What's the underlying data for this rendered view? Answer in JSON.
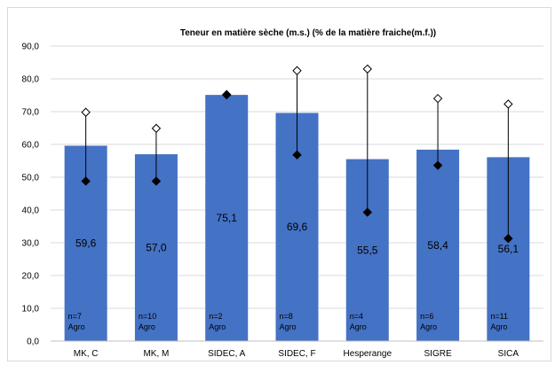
{
  "chart_data": {
    "type": "bar",
    "title": "Teneur en matière sèche (m.s.) (% de la matière fraiche(m.f.))",
    "categories": [
      "MK, C",
      "MK, M",
      "SIDEC, A",
      "SIDEC, F",
      "Hesperange",
      "SIGRE",
      "SICA"
    ],
    "values": [
      59.6,
      57.0,
      75.1,
      69.6,
      55.5,
      58.4,
      56.1
    ],
    "value_labels": [
      "59,6",
      "57,0",
      "75,1",
      "69,6",
      "55,5",
      "58,4",
      "56,1"
    ],
    "max": [
      69.8,
      64.9,
      75.2,
      82.5,
      83.0,
      74.0,
      72.3
    ],
    "min": [
      48.8,
      48.8,
      75.1,
      56.8,
      39.3,
      53.6,
      31.3
    ],
    "n_labels": [
      "n=7",
      "n=10",
      "n=2",
      "n=8",
      "n=4",
      "n=6",
      "n=11"
    ],
    "group_label": "Agro",
    "ylim": [
      0,
      90
    ],
    "ytick_labels": [
      "0,0",
      "10,0",
      "20,0",
      "30,0",
      "40,0",
      "50,0",
      "60,0",
      "70,0",
      "80,0",
      "90,0"
    ],
    "xlabel": "",
    "ylabel": "",
    "grid": true,
    "legend": "none",
    "colors": {
      "bar": "#4472C4",
      "grid": "#d9d9d9",
      "marker": "#000000"
    }
  }
}
